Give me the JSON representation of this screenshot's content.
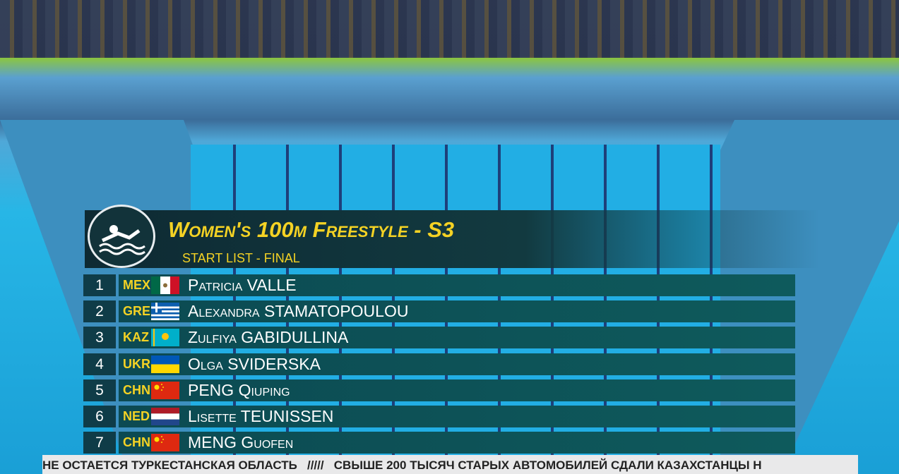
{
  "header": {
    "title": "Women's 100m Freestyle - S3",
    "subtitle": "START LIST - FINAL"
  },
  "table": {
    "rows": [
      [
        1,
        "MEX",
        "Patricia VALLE"
      ],
      [
        2,
        "GRE",
        "Alexandra STAMATOPOULOU"
      ],
      [
        3,
        "KAZ",
        "Zulfiya GABIDULLINA"
      ],
      [
        4,
        "UKR",
        "Olga SVIDERSKA"
      ],
      [
        5,
        "CHN",
        "PENG Qiuping"
      ],
      [
        6,
        "NED",
        "Lisette TEUNISSEN"
      ],
      [
        7,
        "CHN",
        "MENG Guofen"
      ]
    ]
  },
  "ticker": {
    "text": "НЕ ОСТАЕТСЯ ТУРКЕСТАНСКАЯ ОБЛАСТЬ   /////   СВЫШЕ 200 ТЫСЯЧ СТАРЫХ АВТОМОБИЛЕЙ СДАЛИ КАЗАХСТАНЦЫ Н"
  }
}
